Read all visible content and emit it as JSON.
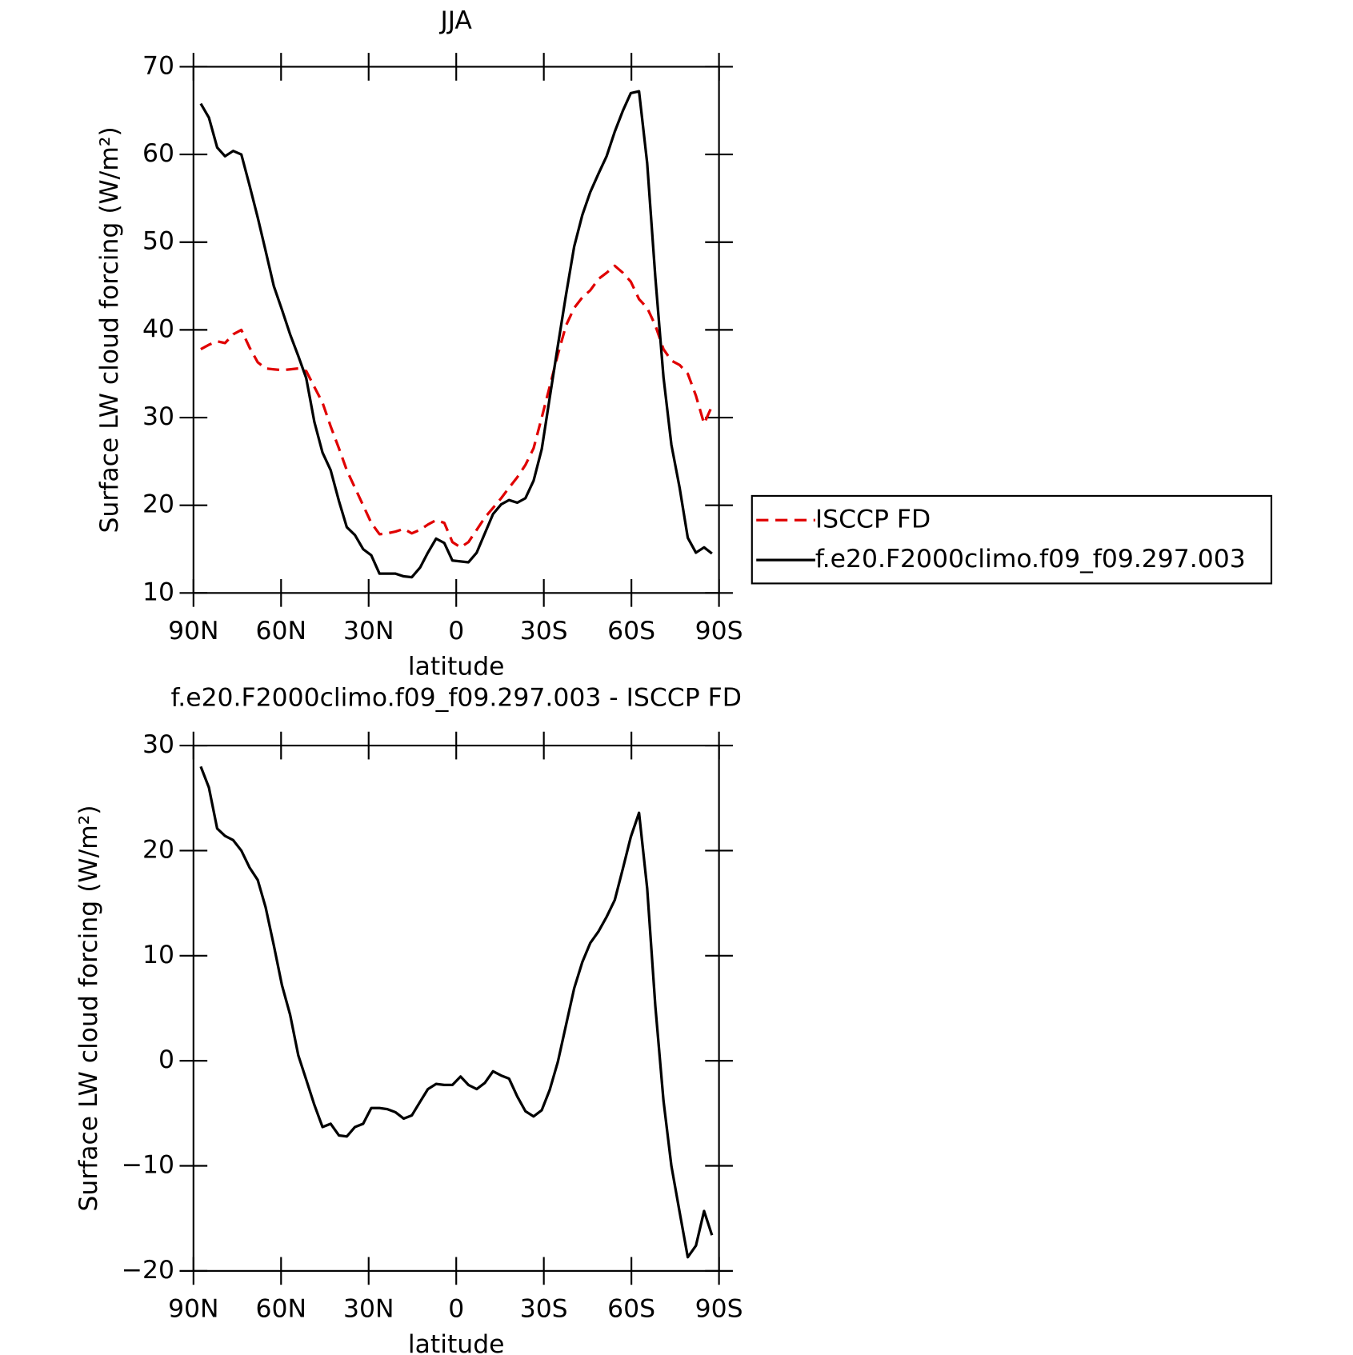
{
  "chart_data": [
    {
      "type": "line",
      "title": "JJA",
      "xlabel": "latitude",
      "ylabel": "Surface LW cloud forcing (W/m²)",
      "x": [
        87.5,
        84.7,
        81.9,
        79.2,
        76.4,
        73.6,
        70.8,
        68.0,
        65.3,
        62.5,
        59.7,
        56.9,
        54.1,
        51.4,
        48.6,
        45.8,
        43.0,
        40.2,
        37.5,
        34.7,
        31.9,
        29.1,
        26.3,
        23.6,
        20.8,
        18.0,
        15.2,
        12.4,
        9.7,
        6.9,
        4.1,
        1.3,
        -1.5,
        -4.2,
        -7.0,
        -9.8,
        -12.6,
        -15.4,
        -18.1,
        -20.9,
        -23.7,
        -26.5,
        -29.3,
        -32.0,
        -34.8,
        -37.6,
        -40.4,
        -43.2,
        -45.9,
        -48.7,
        -51.5,
        -54.3,
        -57.1,
        -59.8,
        -62.6,
        -65.4,
        -68.2,
        -71.0,
        -73.7,
        -76.5,
        -79.3,
        -82.1,
        -84.9,
        -87.6
      ],
      "xlim": [
        90,
        -90
      ],
      "xticks": [
        {
          "value": 90,
          "label": "90N"
        },
        {
          "value": 60,
          "label": "60N"
        },
        {
          "value": 30,
          "label": "30N"
        },
        0,
        {
          "value": -30,
          "label": "30S"
        },
        {
          "value": -60,
          "label": "60S"
        },
        {
          "value": -90,
          "label": "90S"
        }
      ],
      "ylim": [
        10,
        70
      ],
      "yticks": [
        10,
        20,
        30,
        40,
        50,
        60,
        70
      ],
      "legend": "right",
      "series": [
        {
          "name": "ISCCP FD",
          "color": "#e00000",
          "linestyle": "dashed",
          "values": [
            37.8,
            38.3,
            38.7,
            38.5,
            39.5,
            40,
            38,
            36.3,
            35.6,
            35.5,
            35.4,
            35.5,
            35.6,
            35.3,
            33.5,
            31.7,
            29,
            26.5,
            24,
            22,
            20,
            18,
            16.7,
            16.8,
            17,
            17.3,
            16.8,
            17.2,
            17.8,
            18.3,
            18,
            15.8,
            15.2,
            15.8,
            17.2,
            18.6,
            19.7,
            20.8,
            22,
            23.2,
            24.6,
            26.5,
            30,
            33.5,
            37.2,
            40.5,
            42.5,
            43.7,
            44.5,
            45.8,
            46.5,
            47.3,
            46.5,
            45.5,
            43.5,
            42.5,
            40.5,
            37.8,
            36.5,
            36,
            35,
            32.5,
            29.3,
            31.3
          ]
        },
        {
          "name": "f.e20.F2000climo.f09_f09.297.003",
          "color": "#000000",
          "linestyle": "solid",
          "values": [
            65.8,
            64.2,
            60.8,
            59.8,
            60.4,
            60.0,
            56.5,
            52.8,
            49,
            45,
            42.3,
            39.5,
            37,
            34.5,
            29.5,
            26,
            24,
            20.5,
            17.5,
            16.6,
            15,
            14.3,
            12.2,
            12.2,
            12.2,
            11.9,
            11.8,
            12.9,
            14.6,
            16.2,
            15.7,
            13.7,
            13.6,
            13.5,
            14.6,
            16.8,
            19,
            20.1,
            20.6,
            20.3,
            20.8,
            22.8,
            26.4,
            32.2,
            38.2,
            44,
            49.5,
            53.1,
            55.7,
            57.8,
            59.8,
            62.6,
            65,
            67,
            67.2,
            59,
            46,
            34.6,
            26.9,
            22,
            16.3,
            14.6,
            15.2,
            14.5
          ]
        }
      ]
    },
    {
      "type": "line",
      "title": "f.e20.F2000climo.f09_f09.297.003 - ISCCP FD",
      "xlabel": "latitude",
      "ylabel": "Surface LW cloud forcing (W/m²)",
      "x": [
        87.5,
        84.7,
        81.9,
        79.2,
        76.4,
        73.6,
        70.8,
        68.0,
        65.3,
        62.5,
        59.7,
        56.9,
        54.1,
        51.4,
        48.6,
        45.8,
        43.0,
        40.2,
        37.5,
        34.7,
        31.9,
        29.1,
        26.3,
        23.6,
        20.8,
        18.0,
        15.2,
        12.4,
        9.7,
        6.9,
        4.1,
        1.3,
        -1.5,
        -4.2,
        -7.0,
        -9.8,
        -12.6,
        -15.4,
        -18.1,
        -20.9,
        -23.7,
        -26.5,
        -29.3,
        -32.0,
        -34.8,
        -37.6,
        -40.4,
        -43.2,
        -45.9,
        -48.7,
        -51.5,
        -54.3,
        -57.1,
        -59.8,
        -62.6,
        -65.4,
        -68.2,
        -71.0,
        -73.7,
        -76.5,
        -79.3,
        -82.1,
        -84.9,
        -87.6
      ],
      "xlim": [
        90,
        -90
      ],
      "xticks": [
        {
          "value": 90,
          "label": "90N"
        },
        {
          "value": 60,
          "label": "60N"
        },
        {
          "value": 30,
          "label": "30N"
        },
        0,
        {
          "value": -30,
          "label": "30S"
        },
        {
          "value": -60,
          "label": "60S"
        },
        {
          "value": -90,
          "label": "90S"
        }
      ],
      "ylim": [
        -20,
        30
      ],
      "yticks": [
        {
          "value": -20,
          "label": "−20"
        },
        {
          "value": -10,
          "label": "−10"
        },
        0,
        10,
        20,
        30
      ],
      "color": "#000000",
      "values": [
        28,
        26,
        22.1,
        21.4,
        21,
        20,
        18.4,
        17.2,
        14.6,
        11,
        7.2,
        4.4,
        0.5,
        -1.8,
        -4.2,
        -6.3,
        -6,
        -7.1,
        -7.2,
        -6.3,
        -6,
        -4.5,
        -4.5,
        -4.6,
        -4.9,
        -5.5,
        -5.2,
        -3.9,
        -2.7,
        -2.2,
        -2.3,
        -2.3,
        -1.5,
        -2.3,
        -2.7,
        -2.1,
        -1,
        -1.4,
        -1.7,
        -3.4,
        -4.8,
        -5.3,
        -4.7,
        -2.8,
        -0.1,
        3.4,
        6.9,
        9.4,
        11.2,
        12.3,
        13.7,
        15.3,
        18.3,
        21.3,
        23.6,
        16.4,
        5.2,
        -3.8,
        -10,
        -14.4,
        -18.7,
        -17.6,
        -14.3,
        -16.6
      ]
    }
  ]
}
